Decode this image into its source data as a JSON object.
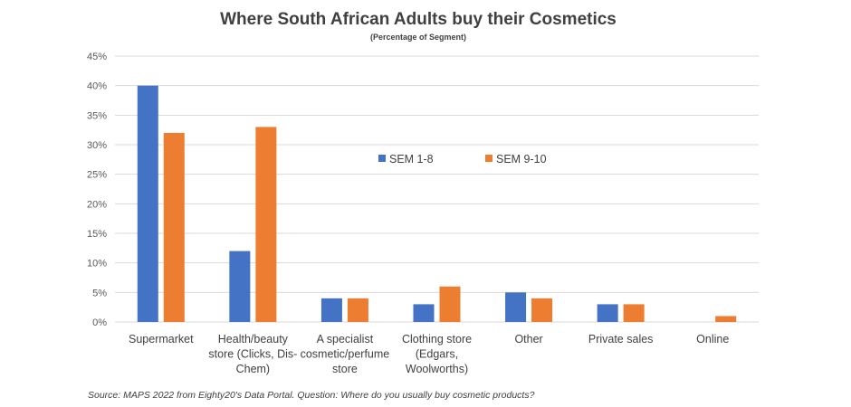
{
  "chart_data": {
    "type": "bar",
    "title": "Where South African Adults buy their Cosmetics",
    "subtitle": "(Percentage of Segment)",
    "categories": [
      [
        "Supermarket"
      ],
      [
        "Health/beauty",
        "store (Clicks, Dis-",
        "Chem)"
      ],
      [
        "A specialist",
        "cosmetic/perfume",
        "store"
      ],
      [
        "Clothing store",
        "(Edgars,",
        "Woolworths)"
      ],
      [
        "Other"
      ],
      [
        "Private sales"
      ],
      [
        "Online"
      ]
    ],
    "series": [
      {
        "name": "SEM 1-8",
        "color": "#4472C4",
        "values": [
          40,
          12,
          4,
          3,
          5,
          3,
          0
        ]
      },
      {
        "name": "SEM 9-10",
        "color": "#ED7D31",
        "values": [
          32,
          33,
          4,
          6,
          4,
          3,
          1
        ]
      }
    ],
    "yticks": [
      "0%",
      "5%",
      "10%",
      "15%",
      "20%",
      "25%",
      "30%",
      "35%",
      "40%",
      "45%"
    ],
    "ylim": [
      0,
      45
    ],
    "grid": true,
    "legend_position": "center-top",
    "source": "Source: MAPS 2022 from Eighty20's Data Portal. Question: Where do you usually buy cosmetic products?"
  }
}
